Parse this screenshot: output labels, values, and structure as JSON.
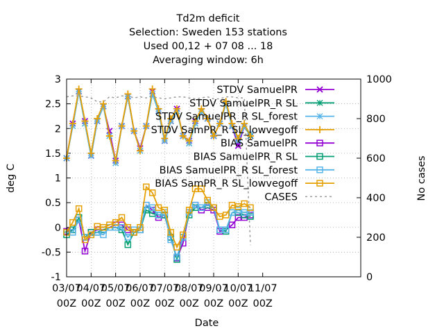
{
  "chart_data": {
    "type": "line",
    "title_lines": [
      "Td2m deficit",
      "Selection: Sweden     153 stations",
      "Used  00,12  + 07 08 ... 18",
      "Averaging window:  6h"
    ],
    "xlabel": "Date",
    "ylabel": "deg C",
    "y2label": "No cases",
    "xlim": [
      0,
      48
    ],
    "ylim": [
      -1,
      3
    ],
    "y2lim": [
      0,
      1000
    ],
    "x_ticks": [
      {
        "x": 0,
        "line1": "03/07",
        "line2": "00Z"
      },
      {
        "x": 4,
        "line1": "04/07",
        "line2": "00Z"
      },
      {
        "x": 8,
        "line1": "05/07",
        "line2": "00Z"
      },
      {
        "x": 12,
        "line1": "06/07",
        "line2": "00Z"
      },
      {
        "x": 16,
        "line1": "07/07",
        "line2": "00Z"
      },
      {
        "x": 20,
        "line1": "08/07",
        "line2": "00Z"
      },
      {
        "x": 24,
        "line1": "09/07",
        "line2": "00Z"
      },
      {
        "x": 28,
        "line1": "10/07",
        "line2": "00Z"
      },
      {
        "x": 32,
        "line1": "11/07",
        "line2": "00Z"
      }
    ],
    "y_ticks": [
      "-1",
      "-0.5",
      "0",
      "0.5",
      "1",
      "1.5",
      "2",
      "2.5",
      "3"
    ],
    "y2_ticks": [
      "0",
      "200",
      "400",
      "600",
      "800",
      "1000"
    ],
    "grid": true,
    "legend_position": "top-right",
    "x": [
      0,
      1,
      2,
      3,
      4,
      5,
      6,
      7,
      8,
      9,
      10,
      11,
      12,
      13,
      14,
      15,
      16,
      17,
      18,
      19,
      20,
      21,
      22,
      23,
      24,
      25,
      26,
      27,
      28,
      29,
      30
    ],
    "series": [
      {
        "name": "STDV SamuelPR",
        "color": "#9400d3",
        "marker": "x",
        "axis": "y",
        "values": [
          1.4,
          2.1,
          2.75,
          2.15,
          1.45,
          2.15,
          2.45,
          1.95,
          1.35,
          2.05,
          2.65,
          1.95,
          1.6,
          2.05,
          2.75,
          2.35,
          1.75,
          2.15,
          2.4,
          1.85,
          1.75,
          2.15,
          2.35,
          2.2,
          1.85,
          2.1,
          2.5,
          2.05,
          1.65,
          2.05,
          1.85
        ]
      },
      {
        "name": "STDV SamuelPR_R SL",
        "color": "#009e73",
        "marker": "star",
        "axis": "y",
        "values": [
          1.4,
          2.05,
          2.75,
          2.1,
          1.45,
          2.15,
          2.45,
          1.85,
          1.3,
          2.05,
          2.65,
          1.95,
          1.55,
          2.05,
          2.7,
          2.35,
          1.75,
          2.15,
          2.35,
          1.85,
          1.7,
          2.1,
          2.35,
          2.2,
          1.85,
          2.1,
          2.5,
          2.05,
          1.75,
          2.05,
          1.85
        ]
      },
      {
        "name": "STDV SamuelPR_R SL_forest",
        "color": "#56b4e9",
        "marker": "star",
        "axis": "y",
        "values": [
          1.4,
          2.05,
          2.75,
          2.1,
          1.45,
          2.15,
          2.45,
          1.85,
          1.3,
          2.05,
          2.65,
          1.95,
          1.55,
          2.05,
          2.7,
          2.35,
          1.75,
          2.15,
          2.35,
          1.85,
          1.7,
          2.1,
          2.35,
          2.2,
          1.85,
          2.1,
          2.5,
          2.05,
          1.75,
          2.05,
          1.9
        ]
      },
      {
        "name": "STDV SamPR_R SL_lowvegoff",
        "color": "#e69f00",
        "marker": "plus",
        "axis": "y",
        "values": [
          1.4,
          2.1,
          2.8,
          2.15,
          1.5,
          2.2,
          2.5,
          1.85,
          1.35,
          2.05,
          2.7,
          1.95,
          1.55,
          2.05,
          2.8,
          2.4,
          1.8,
          2.2,
          2.4,
          1.85,
          1.75,
          2.15,
          2.4,
          2.2,
          1.85,
          2.1,
          2.55,
          2.1,
          1.8,
          2.1,
          1.85
        ]
      },
      {
        "name": "BIAS SamuelPR",
        "color": "#9400d3",
        "marker": "square",
        "axis": "y",
        "values": [
          -0.08,
          -0.05,
          0.15,
          -0.48,
          -0.1,
          -0.05,
          -0.05,
          0.0,
          0.05,
          0.05,
          -0.05,
          -0.1,
          -0.05,
          0.45,
          0.35,
          0.2,
          0.25,
          -0.2,
          -0.62,
          -0.32,
          0.3,
          0.45,
          0.35,
          0.4,
          0.35,
          -0.08,
          -0.05,
          0.05,
          0.2,
          0.2,
          0.25
        ]
      },
      {
        "name": "BIAS SamuelPR_R SL",
        "color": "#009e73",
        "marker": "square",
        "axis": "y",
        "values": [
          -0.15,
          -0.05,
          0.2,
          -0.2,
          -0.1,
          -0.1,
          -0.05,
          0.0,
          0.0,
          -0.05,
          -0.35,
          -0.1,
          -0.05,
          0.35,
          0.28,
          0.25,
          0.25,
          -0.2,
          -0.65,
          -0.2,
          0.25,
          0.4,
          0.4,
          0.45,
          0.4,
          -0.05,
          -0.08,
          0.3,
          0.3,
          0.25,
          0.22
        ]
      },
      {
        "name": "BIAS SamuelPR_R SL_forest",
        "color": "#56b4e9",
        "marker": "square",
        "axis": "y",
        "values": [
          -0.1,
          -0.1,
          0.15,
          -0.2,
          -0.15,
          -0.1,
          -0.15,
          0.0,
          0.0,
          0.0,
          -0.2,
          -0.05,
          -0.05,
          0.45,
          0.4,
          0.25,
          0.3,
          -0.25,
          -0.6,
          -0.2,
          0.3,
          0.45,
          0.4,
          0.5,
          0.4,
          -0.05,
          -0.05,
          0.3,
          0.35,
          0.3,
          0.3
        ]
      },
      {
        "name": "BIAS SamPR_R SL_lowvegoff",
        "color": "#e69f00",
        "marker": "square",
        "axis": "y",
        "values": [
          -0.1,
          0.1,
          0.38,
          -0.25,
          -0.15,
          0.02,
          0.0,
          0.05,
          0.1,
          0.2,
          0.0,
          -0.1,
          0.0,
          0.82,
          0.7,
          0.4,
          0.35,
          -0.1,
          -0.4,
          -0.15,
          0.35,
          0.78,
          0.78,
          0.55,
          0.4,
          0.22,
          0.25,
          0.45,
          0.42,
          0.48,
          0.4
        ]
      },
      {
        "name": "CASES",
        "color": "#999999",
        "marker": "none",
        "axis": "y2",
        "dashed": true,
        "values": [
          910,
          915,
          915,
          910,
          905,
          885,
          885,
          910,
          905,
          915,
          915,
          905,
          910,
          905,
          910,
          905,
          900,
          905,
          910,
          910,
          905,
          900,
          905,
          910,
          900,
          900,
          910,
          910,
          905,
          905,
          160
        ]
      }
    ]
  }
}
